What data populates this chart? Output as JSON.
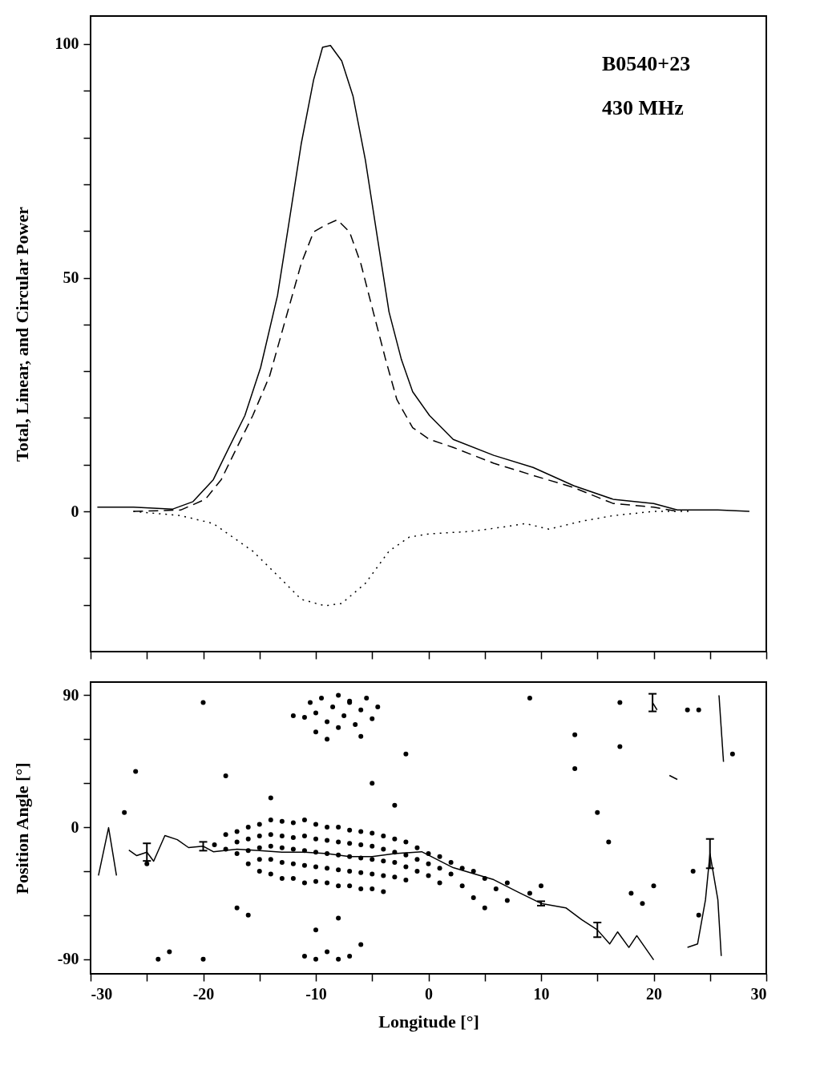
{
  "chart_data": [
    {
      "type": "line",
      "ylabel": "Total, Linear, and Circular Power",
      "annotations": [
        "B0540+23",
        "430 MHz"
      ],
      "xlim": [
        -30,
        30
      ],
      "xticks": [
        -30,
        {
          "value": -25,
          "label": null
        },
        -20,
        {
          "value": -15,
          "label": null
        },
        -10,
        {
          "value": -5,
          "label": null
        },
        0,
        {
          "value": 5,
          "label": null
        },
        10,
        {
          "value": 15,
          "label": null
        },
        20,
        {
          "value": 25,
          "label": null
        },
        30
      ],
      "ylim": [
        -30,
        106
      ],
      "yticks": [
        {
          "value": -20,
          "label": null
        },
        {
          "value": -10,
          "label": null
        },
        0,
        {
          "value": 10,
          "label": null
        },
        {
          "value": 20,
          "label": null
        },
        {
          "value": 30,
          "label": null
        },
        {
          "value": 40,
          "label": null
        },
        50,
        {
          "value": 60,
          "label": null
        },
        {
          "value": 70,
          "label": null
        },
        {
          "value": 80,
          "label": null
        },
        {
          "value": 90,
          "label": null
        },
        100
      ],
      "tick_labels": "y",
      "grid": false,
      "series": [
        {
          "color": "#000000",
          "line_style": "solid",
          "x": [
            -29.4,
            -26.2,
            -22.7,
            -20.9,
            -19.1,
            -17.7,
            -16.3,
            -14.9,
            -13.4,
            -12.4,
            -11.3,
            -10.2,
            -9.4,
            -8.7,
            -7.7,
            -6.7,
            -5.6,
            -4.5,
            -3.5,
            -2.4,
            -1.4,
            0.1,
            2.2,
            5.8,
            9.3,
            12.9,
            16.4,
            20.0,
            22.1,
            25.7,
            28.5
          ],
          "values": [
            0.9,
            0.9,
            0.5,
            2.1,
            6.8,
            13.7,
            20.5,
            30.8,
            46.2,
            61.5,
            78.6,
            92.3,
            99.3,
            99.7,
            96.4,
            88.9,
            75.2,
            58.1,
            42.7,
            32.5,
            25.6,
            20.5,
            15.4,
            12.0,
            9.4,
            5.5,
            2.6,
            1.7,
            0.3,
            0.3,
            0
          ]
        },
        {
          "color": "#000000",
          "line_style": "dashed",
          "x": [
            -26.2,
            -22,
            -19.8,
            -18.4,
            -17,
            -15.6,
            -14.1,
            -12.7,
            -11.3,
            -10.2,
            -9.2,
            -8.1,
            -7,
            -6,
            -4.9,
            -3.8,
            -2.8,
            -1.4,
            0.1,
            2.2,
            5.8,
            9.3,
            12.9,
            16.4,
            20,
            22.1
          ],
          "values": [
            0,
            0.3,
            2.6,
            6.8,
            13.7,
            20.5,
            29,
            41,
            53,
            59.8,
            61.2,
            62.4,
            59.8,
            53,
            42.7,
            32.5,
            23.9,
            17.9,
            15.4,
            13.7,
            10.3,
            7.7,
            5.1,
            1.7,
            0.9,
            0
          ]
        },
        {
          "color": "#000000",
          "line_style": "dotted",
          "x": [
            -26.2,
            -22,
            -19.1,
            -15.6,
            -13.4,
            -11.3,
            -9.2,
            -7.7,
            -5.6,
            -3.5,
            -1.7,
            0.1,
            3.6,
            6.5,
            8.6,
            10.7,
            13.6,
            16.4,
            20,
            23.5
          ],
          "values": [
            0,
            -0.9,
            -2.6,
            -8.5,
            -13.7,
            -18.8,
            -20.2,
            -19.7,
            -15.4,
            -8.5,
            -5.5,
            -4.8,
            -4.3,
            -3.4,
            -2.6,
            -3.8,
            -2.1,
            -0.9,
            0,
            0
          ]
        }
      ]
    },
    {
      "type": "scatter",
      "xlabel": "Longitude [°]",
      "ylabel": "Position Angle [°]",
      "xlim": [
        -30,
        30
      ],
      "xticks": [
        -30,
        {
          "value": -25,
          "label": null
        },
        -20,
        {
          "value": -15,
          "label": null
        },
        -10,
        {
          "value": -5,
          "label": null
        },
        0,
        {
          "value": 5,
          "label": null
        },
        10,
        {
          "value": 15,
          "label": null
        },
        20,
        {
          "value": 25,
          "label": null
        },
        30
      ],
      "ylim": [
        -100,
        99
      ],
      "yticks": [
        -90,
        {
          "value": -60,
          "label": null
        },
        {
          "value": -30,
          "label": null
        },
        0,
        {
          "value": 30,
          "label": null
        },
        {
          "value": 60,
          "label": null
        },
        90
      ],
      "grid": false,
      "series": [
        {
          "marker": "circle",
          "color": "#000000",
          "x": [
            -19,
            -18,
            -18,
            -17,
            -17,
            -17,
            -16,
            -16,
            -16,
            -16,
            -15,
            -15,
            -15,
            -15,
            -15,
            -14,
            -14,
            -14,
            -14,
            -14,
            -13,
            -13,
            -13,
            -13,
            -13,
            -12,
            -12,
            -12,
            -12,
            -12,
            -11,
            -11,
            -11,
            -11,
            -11,
            -10,
            -10,
            -10,
            -10,
            -10,
            -9,
            -9,
            -9,
            -9,
            -9,
            -8,
            -8,
            -8,
            -8,
            -8,
            -7,
            -7,
            -7,
            -7,
            -7,
            -6,
            -6,
            -6,
            -6,
            -6,
            -5,
            -5,
            -5,
            -5,
            -5,
            -4,
            -4,
            -4,
            -4,
            -4,
            -3,
            -3,
            -3,
            -3,
            -2,
            -2,
            -2,
            -2,
            -1,
            -1,
            -1,
            0,
            0,
            0,
            1,
            1,
            1,
            2,
            2,
            3,
            3,
            4,
            4,
            5,
            5,
            6,
            7,
            7,
            9,
            10,
            -11,
            -10.5,
            -10,
            -9.5,
            -9,
            -8.5,
            -8,
            -7.5,
            -7,
            -6.5,
            -6,
            -5.5,
            -5,
            -4.5,
            -10,
            -8,
            -12,
            -6,
            -9,
            -7,
            -11,
            -10,
            -9,
            -8,
            -7,
            -6,
            -10,
            -8,
            -26,
            -25,
            -20,
            -18,
            -17,
            -16,
            -14,
            -5,
            -3,
            -2,
            9,
            13,
            13,
            15,
            16,
            17,
            17,
            18,
            19,
            20,
            23,
            23.5,
            24,
            -23,
            -24,
            -20,
            -27,
            27,
            24
          ],
          "values": [
            -12,
            -5,
            -15,
            -3,
            -10,
            -18,
            0,
            -8,
            -16,
            -25,
            2,
            -6,
            -14,
            -22,
            -30,
            5,
            -5,
            -13,
            -22,
            -32,
            4,
            -6,
            -14,
            -24,
            -35,
            3,
            -7,
            -15,
            -25,
            -35,
            5,
            -6,
            -16,
            -26,
            -38,
            2,
            -8,
            -17,
            -27,
            -37,
            0,
            -9,
            -18,
            -28,
            -38,
            0,
            -10,
            -19,
            -29,
            -40,
            -2,
            -11,
            -20,
            -30,
            -40,
            -3,
            -12,
            -21,
            -31,
            -42,
            -4,
            -13,
            -22,
            -32,
            -42,
            -6,
            -15,
            -23,
            -33,
            -44,
            -8,
            -17,
            -24,
            -34,
            -10,
            -19,
            -27,
            -36,
            -14,
            -22,
            -30,
            -18,
            -25,
            -33,
            -20,
            -28,
            -38,
            -24,
            -32,
            -28,
            -40,
            -30,
            -48,
            -35,
            -55,
            -42,
            -38,
            -50,
            -45,
            -40,
            75,
            85,
            78,
            88,
            72,
            82,
            90,
            76,
            86,
            70,
            80,
            88,
            74,
            82,
            65,
            68,
            76,
            62,
            60,
            85,
            -88,
            -90,
            -85,
            -90,
            -88,
            -80,
            -70,
            -62,
            38,
            -25,
            85,
            35,
            -55,
            -60,
            20,
            30,
            15,
            50,
            88,
            63,
            40,
            10,
            -10,
            55,
            85,
            -45,
            -52,
            -40,
            80,
            -30,
            -60,
            -85,
            -90,
            -90,
            10,
            50,
            80
          ]
        },
        {
          "type": "line",
          "line_style": "solid",
          "color": "#000000",
          "x": [
            -29.3,
            -28.4,
            -27.7
          ],
          "values": [
            -33,
            -0.3,
            -33
          ]
        },
        {
          "type": "line",
          "line_style": "solid",
          "color": "#000000",
          "x": [
            -26.6,
            -25.9,
            -25,
            -24.4,
            -23.4,
            -22.3,
            -21.3,
            -20,
            -19.1,
            -17,
            -15,
            -13,
            -11,
            -9,
            -7,
            -5,
            -3,
            -0.6,
            2.2,
            5.8,
            7.9,
            10,
            12.2,
            13.6,
            15,
            16.1,
            16.8,
            17.8,
            18.5,
            20
          ],
          "values": [
            -15.6,
            -19.4,
            -17,
            -23.2,
            -5.7,
            -8.5,
            -13.9,
            -13,
            -16.7,
            -15,
            -16,
            -17,
            -17,
            -18,
            -20,
            -20,
            -18,
            -16.7,
            -27.6,
            -35.8,
            -44,
            -52,
            -55,
            -63,
            -70,
            -79.6,
            -71.4,
            -82,
            -74,
            -90.5
          ],
          "errors": [
            null,
            null,
            6,
            null,
            null,
            null,
            null,
            3,
            null,
            null,
            null,
            null,
            null,
            null,
            null,
            null,
            null,
            null,
            null,
            null,
            null,
            1.5,
            null,
            null,
            5,
            null,
            null,
            null,
            null,
            null
          ]
        },
        {
          "type": "line",
          "line_style": "solid",
          "color": "#000000",
          "x": [
            19.9,
            20.3
          ],
          "values": [
            85,
            80
          ],
          "errors": [
            6,
            null
          ]
        },
        {
          "type": "line",
          "line_style": "solid",
          "color": "#000000",
          "x": [
            21.4,
            22.1
          ],
          "values": [
            35.3,
            32.6
          ]
        },
        {
          "type": "line",
          "line_style": "solid",
          "color": "#000000",
          "x": [
            23,
            23.9,
            24.6,
            25,
            25.7,
            26
          ],
          "values": [
            -82,
            -79.6,
            -49.5,
            -18,
            -49.5,
            -87.8
          ],
          "errors": [
            null,
            null,
            null,
            10,
            null,
            null
          ]
        },
        {
          "type": "line",
          "line_style": "solid",
          "color": "#000000",
          "x": [
            25.8,
            26.2
          ],
          "values": [
            90,
            44.6
          ]
        }
      ]
    }
  ]
}
